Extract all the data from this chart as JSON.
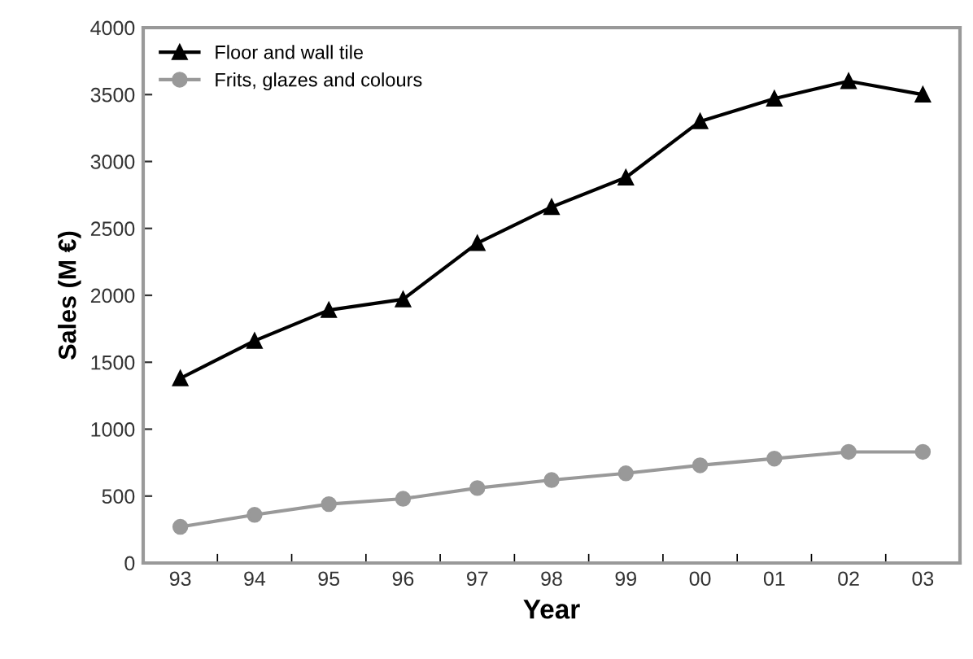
{
  "chart_data": {
    "type": "line",
    "xlabel": "Year",
    "ylabel": "Sales (M €)",
    "categories": [
      "93",
      "94",
      "95",
      "96",
      "97",
      "98",
      "99",
      "00",
      "01",
      "02",
      "03"
    ],
    "series": [
      {
        "name": "Floor and wall tile",
        "color": "#000000",
        "marker": "triangle",
        "values": [
          1380,
          1660,
          1890,
          1970,
          2390,
          2660,
          2880,
          3300,
          3470,
          3600,
          3500
        ]
      },
      {
        "name": "Frits, glazes and colours",
        "color": "#999999",
        "marker": "circle",
        "values": [
          270,
          360,
          440,
          480,
          560,
          620,
          670,
          730,
          780,
          830,
          830
        ]
      }
    ],
    "ylim": [
      0,
      4000
    ],
    "yticks": [
      0,
      500,
      1000,
      1500,
      2000,
      2500,
      3000,
      3500,
      4000
    ],
    "grid": false,
    "legend": "top left",
    "line_style": "solid"
  }
}
